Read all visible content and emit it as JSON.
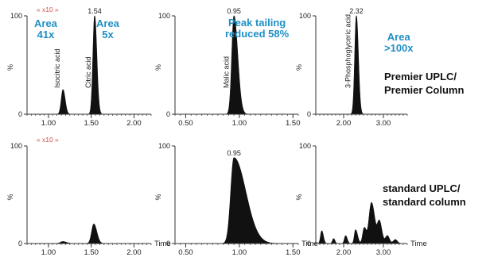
{
  "colors": {
    "annotation": "#1f8fc4",
    "zoom": "#d9534f",
    "axis": "#333333",
    "peak": "#111111"
  },
  "labels": {
    "premier": [
      "Premier UPLC/",
      "Premier Column"
    ],
    "standard": [
      "standard UPLC/",
      "standard column"
    ]
  },
  "chart_data": [
    {
      "type": "line",
      "panel": "premier-citric",
      "xlim": [
        0.75,
        2.2
      ],
      "xticks": [
        1.0,
        1.5,
        2.0
      ],
      "xtick_labels": [
        "1.00",
        "1.50",
        "2.00"
      ],
      "ylim": [
        0,
        100
      ],
      "yticks": [
        0,
        100
      ],
      "ylabel": "%",
      "xlabel": "",
      "zoom_label": "x10",
      "peak_labels": [
        {
          "text": "Isocitric acid",
          "x": 1.17,
          "rotated": true
        },
        {
          "text": "Citric acid",
          "x": 1.53,
          "rotated": true
        },
        {
          "text": "1.54",
          "x": 1.54
        }
      ],
      "annotations": [
        {
          "lines": [
            "Area",
            "41x"
          ]
        },
        {
          "lines": [
            "Area",
            "5x"
          ]
        }
      ],
      "peaks": [
        {
          "x": 1.17,
          "h": 25,
          "sl": 0.02,
          "sr": 0.025
        },
        {
          "x": 1.54,
          "h": 100,
          "sl": 0.02,
          "sr": 0.025
        }
      ]
    },
    {
      "type": "line",
      "panel": "premier-malic",
      "xlim": [
        0.4,
        1.55
      ],
      "xticks": [
        0.5,
        1.0,
        1.5
      ],
      "xtick_labels": [
        "0.50",
        "1.00",
        "1.50"
      ],
      "ylim": [
        0,
        100
      ],
      "yticks": [
        0,
        100
      ],
      "ylabel": "%",
      "xlabel": "",
      "peak_labels": [
        {
          "text": "Malic acid",
          "x": 0.93,
          "rotated": true
        },
        {
          "text": "0.95",
          "x": 0.95
        }
      ],
      "annotations": [
        {
          "lines": [
            "Peak tailing",
            "reduced 58%"
          ]
        }
      ],
      "peaks": [
        {
          "x": 0.95,
          "h": 100,
          "sl": 0.02,
          "sr": 0.035
        }
      ]
    },
    {
      "type": "line",
      "panel": "premier-3pga",
      "xlim": [
        1.3,
        3.6
      ],
      "xticks": [
        2.0,
        3.0
      ],
      "xtick_labels": [
        "2.00",
        "3.00"
      ],
      "ylim": [
        0,
        100
      ],
      "yticks": [
        0,
        100
      ],
      "ylabel": "%",
      "xlabel": "",
      "peak_labels": [
        {
          "text": "3-Phosphoglyceric acid",
          "x": 2.25,
          "rotated": true
        },
        {
          "text": "2.32",
          "x": 2.32
        }
      ],
      "annotations": [
        {
          "lines": [
            "Area",
            ">100x"
          ]
        }
      ],
      "peaks": [
        {
          "x": 2.32,
          "h": 100,
          "sl": 0.04,
          "sr": 0.05
        }
      ]
    },
    {
      "type": "line",
      "panel": "standard-citric",
      "xlim": [
        0.75,
        2.2
      ],
      "xticks": [
        1.0,
        1.5,
        2.0
      ],
      "xtick_labels": [
        "1.00",
        "1.50",
        "2.00"
      ],
      "ylim": [
        0,
        100
      ],
      "yticks": [
        0,
        100
      ],
      "ylabel": "%",
      "xlabel": "Time",
      "zoom_label": "x10",
      "peaks": [
        {
          "x": 1.17,
          "h": 2,
          "sl": 0.03,
          "sr": 0.04
        },
        {
          "x": 1.53,
          "h": 20,
          "sl": 0.025,
          "sr": 0.035
        }
      ]
    },
    {
      "type": "line",
      "panel": "standard-malic",
      "xlim": [
        0.4,
        1.55
      ],
      "xticks": [
        0.5,
        1.0,
        1.5
      ],
      "xtick_labels": [
        "0.50",
        "1.00",
        "1.50"
      ],
      "ylim": [
        0,
        100
      ],
      "yticks": [
        0,
        100
      ],
      "ylabel": "%",
      "xlabel": "Time",
      "peak_labels": [
        {
          "text": "0.95",
          "x": 0.95
        }
      ],
      "peaks": [
        {
          "x": 0.95,
          "h": 88,
          "sl": 0.03,
          "sr": 0.11
        }
      ]
    },
    {
      "type": "line",
      "panel": "standard-3pga",
      "xlim": [
        1.3,
        3.6
      ],
      "xticks": [
        2.0,
        3.0
      ],
      "xtick_labels": [
        "2.00",
        "3.00"
      ],
      "ylim": [
        0,
        100
      ],
      "yticks": [
        0,
        100
      ],
      "ylabel": "%",
      "xlabel": "Time",
      "peaks": [
        {
          "x": 1.45,
          "h": 13,
          "sl": 0.03,
          "sr": 0.04
        },
        {
          "x": 1.75,
          "h": 5,
          "sl": 0.03,
          "sr": 0.03
        },
        {
          "x": 2.05,
          "h": 8,
          "sl": 0.03,
          "sr": 0.04
        },
        {
          "x": 2.3,
          "h": 14,
          "sl": 0.03,
          "sr": 0.05
        },
        {
          "x": 2.52,
          "h": 16,
          "sl": 0.04,
          "sr": 0.05
        },
        {
          "x": 2.7,
          "h": 42,
          "sl": 0.06,
          "sr": 0.08
        },
        {
          "x": 2.9,
          "h": 22,
          "sl": 0.05,
          "sr": 0.06
        },
        {
          "x": 3.1,
          "h": 8,
          "sl": 0.05,
          "sr": 0.05
        },
        {
          "x": 3.3,
          "h": 4,
          "sl": 0.05,
          "sr": 0.05
        }
      ]
    }
  ]
}
